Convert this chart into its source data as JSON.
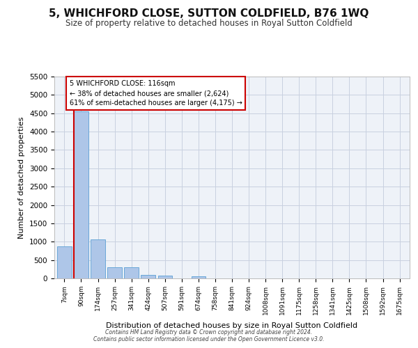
{
  "title": "5, WHICHFORD CLOSE, SUTTON COLDFIELD, B76 1WQ",
  "subtitle": "Size of property relative to detached houses in Royal Sutton Coldfield",
  "xlabel": "Distribution of detached houses by size in Royal Sutton Coldfield",
  "ylabel": "Number of detached properties",
  "bar_values": [
    880,
    4560,
    1060,
    295,
    295,
    90,
    85,
    0,
    55,
    0,
    0,
    0,
    0,
    0,
    0,
    0,
    0,
    0,
    0,
    0,
    0
  ],
  "bar_labels": [
    "7sqm",
    "90sqm",
    "174sqm",
    "257sqm",
    "341sqm",
    "424sqm",
    "507sqm",
    "591sqm",
    "674sqm",
    "758sqm",
    "841sqm",
    "924sqm",
    "1008sqm",
    "1091sqm",
    "1175sqm",
    "1258sqm",
    "1341sqm",
    "1425sqm",
    "1508sqm",
    "1592sqm",
    "1675sqm"
  ],
  "bar_color": "#aec6e8",
  "bar_edge_color": "#5a9fd4",
  "vline_x_index": 1,
  "vline_x_offset": -0.43,
  "vline_color": "#cc0000",
  "annotation_text": "5 WHICHFORD CLOSE: 116sqm\n← 38% of detached houses are smaller (2,624)\n61% of semi-detached houses are larger (4,175) →",
  "annotation_box_facecolor": "#ffffff",
  "annotation_box_edgecolor": "#cc0000",
  "ylim": [
    0,
    5500
  ],
  "yticks": [
    0,
    500,
    1000,
    1500,
    2000,
    2500,
    3000,
    3500,
    4000,
    4500,
    5000,
    5500
  ],
  "footer_line1": "Contains HM Land Registry data © Crown copyright and database right 2024.",
  "footer_line2": "Contains public sector information licensed under the Open Government Licence v3.0.",
  "plot_bg_color": "#eef2f8"
}
